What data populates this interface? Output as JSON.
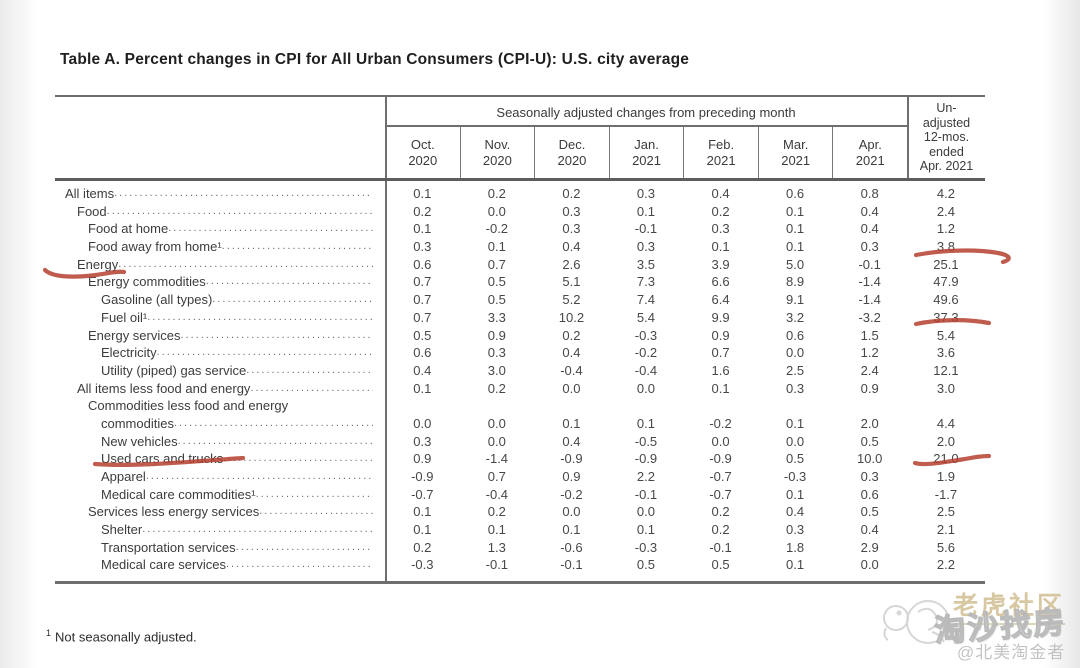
{
  "title": "Table A. Percent changes in CPI for All Urban Consumers (CPI-U): U.S. city average",
  "table": {
    "group_header": "Seasonally adjusted changes from preceding month",
    "unadjusted_header": "Un-\nadjusted\n12-mos.\nended\nApr. 2021",
    "columns": [
      {
        "month": "Oct.",
        "year": "2020"
      },
      {
        "month": "Nov.",
        "year": "2020"
      },
      {
        "month": "Dec.",
        "year": "2020"
      },
      {
        "month": "Jan.",
        "year": "2021"
      },
      {
        "month": "Feb.",
        "year": "2021"
      },
      {
        "month": "Mar.",
        "year": "2021"
      },
      {
        "month": "Apr.",
        "year": "2021"
      }
    ],
    "rows": [
      {
        "label": "All items",
        "indent": 0,
        "values": [
          "0.1",
          "0.2",
          "0.2",
          "0.3",
          "0.4",
          "0.6",
          "0.8",
          "4.2"
        ]
      },
      {
        "label": "Food",
        "indent": 1,
        "values": [
          "0.2",
          "0.0",
          "0.3",
          "0.1",
          "0.2",
          "0.1",
          "0.4",
          "2.4"
        ]
      },
      {
        "label": "Food at home",
        "indent": 2,
        "values": [
          "0.1",
          "-0.2",
          "0.3",
          "-0.1",
          "0.3",
          "0.1",
          "0.4",
          "1.2"
        ]
      },
      {
        "label": "Food away from home¹",
        "indent": 2,
        "values": [
          "0.3",
          "0.1",
          "0.4",
          "0.3",
          "0.1",
          "0.1",
          "0.3",
          "3.8"
        ]
      },
      {
        "label": "Energy",
        "indent": 1,
        "values": [
          "0.6",
          "0.7",
          "2.6",
          "3.5",
          "3.9",
          "5.0",
          "-0.1",
          "25.1"
        ]
      },
      {
        "label": "Energy commodities",
        "indent": 2,
        "values": [
          "0.7",
          "0.5",
          "5.1",
          "7.3",
          "6.6",
          "8.9",
          "-1.4",
          "47.9"
        ]
      },
      {
        "label": "Gasoline (all types)",
        "indent": 3,
        "values": [
          "0.7",
          "0.5",
          "5.2",
          "7.4",
          "6.4",
          "9.1",
          "-1.4",
          "49.6"
        ]
      },
      {
        "label": "Fuel oil¹",
        "indent": 3,
        "values": [
          "0.7",
          "3.3",
          "10.2",
          "5.4",
          "9.9",
          "3.2",
          "-3.2",
          "37.3"
        ]
      },
      {
        "label": "Energy services",
        "indent": 2,
        "values": [
          "0.5",
          "0.9",
          "0.2",
          "-0.3",
          "0.9",
          "0.6",
          "1.5",
          "5.4"
        ]
      },
      {
        "label": "Electricity",
        "indent": 3,
        "values": [
          "0.6",
          "0.3",
          "0.4",
          "-0.2",
          "0.7",
          "0.0",
          "1.2",
          "3.6"
        ]
      },
      {
        "label": "Utility (piped) gas service",
        "indent": 3,
        "values": [
          "0.4",
          "3.0",
          "-0.4",
          "-0.4",
          "1.6",
          "2.5",
          "2.4",
          "12.1"
        ]
      },
      {
        "label": "All items less food and energy",
        "indent": 1,
        "values": [
          "0.1",
          "0.2",
          "0.0",
          "0.0",
          "0.1",
          "0.3",
          "0.9",
          "3.0"
        ]
      },
      {
        "label": "Commodities less food and energy",
        "label2": "commodities",
        "indent": 2,
        "values": [
          "0.0",
          "0.0",
          "0.1",
          "0.1",
          "-0.2",
          "0.1",
          "2.0",
          "4.4"
        ]
      },
      {
        "label": "New vehicles",
        "indent": 3,
        "values": [
          "0.3",
          "0.0",
          "0.4",
          "-0.5",
          "0.0",
          "0.0",
          "0.5",
          "2.0"
        ]
      },
      {
        "label": "Used cars and trucks",
        "indent": 3,
        "values": [
          "0.9",
          "-1.4",
          "-0.9",
          "-0.9",
          "-0.9",
          "0.5",
          "10.0",
          "21.0"
        ]
      },
      {
        "label": "Apparel",
        "indent": 3,
        "values": [
          "-0.9",
          "0.7",
          "0.9",
          "2.2",
          "-0.7",
          "-0.3",
          "0.3",
          "1.9"
        ]
      },
      {
        "label": "Medical care commodities¹",
        "indent": 3,
        "values": [
          "-0.7",
          "-0.4",
          "-0.2",
          "-0.1",
          "-0.7",
          "0.1",
          "0.6",
          "-1.7"
        ]
      },
      {
        "label": "Services less energy services",
        "indent": 2,
        "values": [
          "0.1",
          "0.2",
          "0.0",
          "0.0",
          "0.2",
          "0.4",
          "0.5",
          "2.5"
        ]
      },
      {
        "label": "Shelter",
        "indent": 3,
        "values": [
          "0.1",
          "0.1",
          "0.1",
          "0.1",
          "0.2",
          "0.3",
          "0.4",
          "2.1"
        ]
      },
      {
        "label": "Transportation services",
        "indent": 3,
        "values": [
          "0.2",
          "1.3",
          "-0.6",
          "-0.3",
          "-0.1",
          "1.8",
          "2.9",
          "5.6"
        ]
      },
      {
        "label": "Medical care services",
        "indent": 3,
        "values": [
          "-0.3",
          "-0.1",
          "-0.1",
          "0.5",
          "0.5",
          "0.1",
          "0.0",
          "2.2"
        ]
      }
    ]
  },
  "footnote": {
    "marker": "1",
    "text": "Not seasonally adjusted."
  },
  "annotations": {
    "pen_color": "#b5402e",
    "red_marks": [
      {
        "type": "underline",
        "target": "Energy row label"
      },
      {
        "type": "underline",
        "target": "Used cars and trucks row label"
      },
      {
        "type": "underline",
        "target": "3.8 — Food away from home, 12-mos value"
      },
      {
        "type": "underline",
        "target": "37.3 — Fuel oil, 12-mos value"
      },
      {
        "type": "underline",
        "target": "21.0 — Used cars and trucks, 12-mos value"
      }
    ]
  },
  "watermark": {
    "community": "老虎社区",
    "brand": "淘沙找房",
    "handle": "@北美淘金者"
  }
}
